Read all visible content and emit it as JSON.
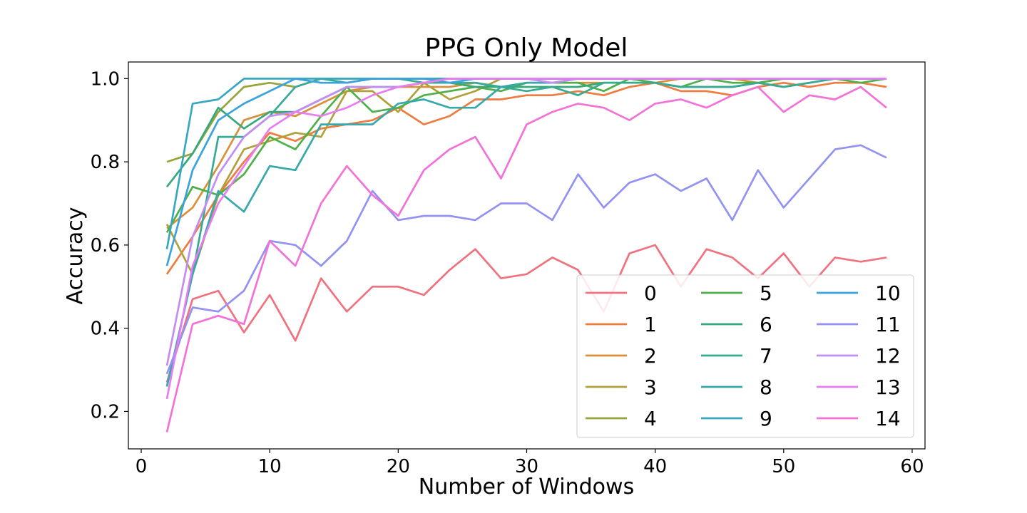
{
  "chart_data": {
    "type": "line",
    "title": "PPG Only Model",
    "xlabel": "Number of Windows",
    "ylabel": "Accuracy",
    "xlim": [
      -1,
      61
    ],
    "ylim": [
      0.11,
      1.04
    ],
    "xticks": [
      0,
      10,
      20,
      30,
      40,
      50,
      60
    ],
    "yticks": [
      0.2,
      0.4,
      0.6,
      0.8,
      1.0
    ],
    "xtick_labels": [
      "0",
      "10",
      "20",
      "30",
      "40",
      "50",
      "60"
    ],
    "ytick_labels": [
      "0.2",
      "0.4",
      "0.6",
      "0.8",
      "1.0"
    ],
    "grid": false,
    "legend": {
      "placement": "lower-right",
      "columns": 3
    },
    "x": [
      2,
      4,
      6,
      8,
      10,
      12,
      14,
      16,
      18,
      20,
      22,
      24,
      26,
      28,
      30,
      32,
      34,
      36,
      38,
      40,
      42,
      44,
      46,
      48,
      50,
      52,
      54,
      56,
      58
    ],
    "series": [
      {
        "name": "0",
        "color": "#f0727f",
        "values": [
          0.27,
          0.47,
          0.49,
          0.39,
          0.48,
          0.37,
          0.52,
          0.44,
          0.5,
          0.5,
          0.48,
          0.54,
          0.59,
          0.52,
          0.53,
          0.57,
          0.54,
          0.44,
          0.58,
          0.6,
          0.5,
          0.59,
          0.57,
          0.52,
          0.58,
          0.5,
          0.57,
          0.56,
          0.57
        ]
      },
      {
        "name": "1",
        "color": "#ee7b3f",
        "values": [
          0.53,
          0.62,
          0.72,
          0.8,
          0.87,
          0.85,
          0.88,
          0.89,
          0.9,
          0.93,
          0.89,
          0.91,
          0.95,
          0.95,
          0.96,
          0.96,
          0.97,
          0.96,
          0.98,
          0.99,
          0.97,
          0.97,
          0.96,
          0.98,
          0.99,
          0.98,
          0.99,
          0.99,
          0.98
        ]
      },
      {
        "name": "2",
        "color": "#d8913a",
        "values": [
          0.64,
          0.69,
          0.79,
          0.9,
          0.92,
          0.91,
          0.94,
          0.97,
          0.98,
          0.98,
          0.98,
          0.98,
          0.99,
          0.98,
          0.99,
          0.99,
          0.99,
          0.99,
          0.99,
          0.99,
          1.0,
          1.0,
          1.0,
          0.99,
          1.0,
          1.0,
          1.0,
          1.0,
          1.0
        ]
      },
      {
        "name": "3",
        "color": "#b0a03a",
        "values": [
          0.65,
          0.53,
          0.72,
          0.83,
          0.85,
          0.87,
          0.86,
          0.97,
          0.97,
          0.92,
          0.99,
          0.95,
          0.97,
          1.0,
          1.0,
          1.0,
          1.0,
          1.0,
          1.0,
          1.0,
          1.0,
          1.0,
          1.0,
          1.0,
          1.0,
          1.0,
          1.0,
          1.0,
          1.0
        ]
      },
      {
        "name": "4",
        "color": "#97a43a",
        "values": [
          0.8,
          0.82,
          0.92,
          0.98,
          0.99,
          0.98,
          1.0,
          1.0,
          1.0,
          1.0,
          1.0,
          1.0,
          1.0,
          1.0,
          1.0,
          1.0,
          1.0,
          1.0,
          1.0,
          1.0,
          1.0,
          1.0,
          1.0,
          1.0,
          1.0,
          1.0,
          1.0,
          1.0,
          1.0
        ]
      },
      {
        "name": "5",
        "color": "#4fb04a",
        "values": [
          0.63,
          0.74,
          0.72,
          0.77,
          0.86,
          0.83,
          0.91,
          0.98,
          0.92,
          0.93,
          0.96,
          0.97,
          0.98,
          0.97,
          0.99,
          0.99,
          0.99,
          0.97,
          1.0,
          0.99,
          0.98,
          1.0,
          0.99,
          0.99,
          1.0,
          1.0,
          1.0,
          0.99,
          1.0
        ]
      },
      {
        "name": "6",
        "color": "#36a97a",
        "values": [
          0.74,
          0.82,
          0.93,
          0.88,
          0.92,
          0.92,
          0.95,
          0.98,
          0.98,
          0.98,
          0.99,
          0.99,
          0.98,
          0.98,
          0.98,
          0.98,
          0.98,
          0.99,
          0.99,
          0.99,
          0.98,
          0.98,
          0.98,
          0.99,
          0.98,
          0.99,
          1.0,
          1.0,
          1.0
        ]
      },
      {
        "name": "7",
        "color": "#36ab93",
        "values": [
          0.26,
          0.53,
          0.86,
          0.86,
          0.91,
          0.98,
          1.0,
          0.99,
          1.0,
          1.0,
          0.99,
          0.99,
          0.99,
          0.98,
          0.97,
          0.98,
          0.96,
          0.99,
          0.99,
          0.99,
          0.98,
          0.98,
          0.98,
          0.99,
          0.98,
          0.99,
          1.0,
          1.0,
          1.0
        ]
      },
      {
        "name": "8",
        "color": "#37a9aa",
        "values": [
          0.26,
          0.53,
          0.73,
          0.68,
          0.79,
          0.78,
          0.89,
          0.89,
          0.89,
          0.94,
          0.95,
          0.93,
          0.93,
          0.98,
          0.99,
          0.99,
          1.0,
          1.0,
          1.0,
          1.0,
          1.0,
          1.0,
          1.0,
          1.0,
          1.0,
          1.0,
          1.0,
          1.0,
          1.0
        ]
      },
      {
        "name": "9",
        "color": "#38a8c0",
        "values": [
          0.59,
          0.94,
          0.95,
          1.0,
          1.0,
          1.0,
          1.0,
          1.0,
          1.0,
          1.0,
          1.0,
          1.0,
          1.0,
          1.0,
          1.0,
          1.0,
          1.0,
          1.0,
          1.0,
          1.0,
          1.0,
          1.0,
          1.0,
          1.0,
          1.0,
          1.0,
          1.0,
          1.0,
          1.0
        ]
      },
      {
        "name": "10",
        "color": "#3aa3dd",
        "values": [
          0.55,
          0.78,
          0.9,
          0.94,
          0.97,
          1.0,
          0.99,
          0.99,
          1.0,
          1.0,
          1.0,
          0.99,
          1.0,
          1.0,
          1.0,
          1.0,
          1.0,
          1.0,
          1.0,
          1.0,
          1.0,
          1.0,
          1.0,
          1.0,
          1.0,
          1.0,
          1.0,
          1.0,
          1.0
        ]
      },
      {
        "name": "11",
        "color": "#9292f2",
        "values": [
          0.29,
          0.45,
          0.44,
          0.49,
          0.61,
          0.6,
          0.55,
          0.61,
          0.73,
          0.66,
          0.67,
          0.67,
          0.66,
          0.7,
          0.7,
          0.66,
          0.77,
          0.69,
          0.75,
          0.77,
          0.73,
          0.76,
          0.66,
          0.78,
          0.69,
          0.76,
          0.83,
          0.84,
          0.81
        ]
      },
      {
        "name": "12",
        "color": "#c58cf2",
        "values": [
          0.31,
          0.62,
          0.77,
          0.86,
          0.91,
          0.92,
          0.95,
          0.98,
          0.98,
          0.98,
          0.99,
          1.0,
          1.0,
          1.0,
          1.0,
          0.99,
          1.0,
          1.0,
          1.0,
          1.0,
          1.0,
          1.0,
          1.0,
          1.0,
          1.0,
          1.0,
          1.0,
          1.0,
          1.0
        ]
      },
      {
        "name": "13",
        "color": "#e87df2",
        "values": [
          0.23,
          0.55,
          0.7,
          0.79,
          0.88,
          0.92,
          0.91,
          0.93,
          0.96,
          0.98,
          0.99,
          1.0,
          1.0,
          1.0,
          1.0,
          1.0,
          1.0,
          1.0,
          1.0,
          1.0,
          1.0,
          1.0,
          1.0,
          1.0,
          1.0,
          1.0,
          1.0,
          1.0,
          1.0
        ]
      },
      {
        "name": "14",
        "color": "#f272d8",
        "values": [
          0.15,
          0.41,
          0.43,
          0.41,
          0.61,
          0.55,
          0.7,
          0.79,
          0.72,
          0.67,
          0.78,
          0.83,
          0.86,
          0.76,
          0.89,
          0.92,
          0.94,
          0.93,
          0.9,
          0.94,
          0.95,
          0.93,
          0.96,
          0.98,
          0.92,
          0.96,
          0.95,
          0.98,
          0.93
        ]
      }
    ]
  }
}
